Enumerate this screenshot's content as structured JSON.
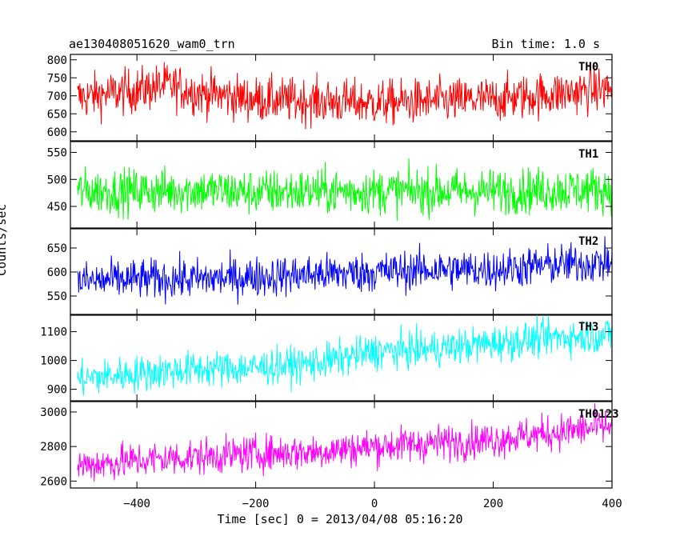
{
  "header": {
    "title_left": "ae130408051620_wam0_trn",
    "title_right": "Bin time: 1.0 s"
  },
  "axes": {
    "ylabel": "Counts/sec",
    "xlabel": "Time [sec] 0 = 2013/04/08 05:16:20"
  },
  "chart_data": [
    {
      "type": "line",
      "label": "TH0",
      "color": "#ff0000",
      "xlim": [
        -512,
        400
      ],
      "ylim": [
        575,
        815
      ],
      "yticks": [
        600,
        650,
        700,
        750,
        800
      ],
      "x": [
        -500,
        -400,
        -350,
        -300,
        -200,
        -100,
        0,
        100,
        200,
        300,
        400
      ],
      "y": [
        695,
        715,
        730,
        710,
        690,
        685,
        680,
        685,
        690,
        705,
        720
      ],
      "scatter": 45
    },
    {
      "type": "line",
      "label": "TH1",
      "color": "#00ff00",
      "xlim": [
        -512,
        400
      ],
      "ylim": [
        410,
        570
      ],
      "yticks": [
        450,
        500,
        550
      ],
      "x": [
        -500,
        -400,
        -300,
        -200,
        -100,
        0,
        100,
        200,
        300,
        400
      ],
      "y": [
        478,
        478,
        480,
        476,
        478,
        478,
        478,
        478,
        480,
        482
      ],
      "scatter": 30
    },
    {
      "type": "line",
      "label": "TH2",
      "color": "#0000ff",
      "xlim": [
        -512,
        400
      ],
      "ylim": [
        510,
        690
      ],
      "yticks": [
        550,
        600,
        650
      ],
      "x": [
        -500,
        -400,
        -300,
        -200,
        -100,
        0,
        100,
        200,
        300,
        400
      ],
      "y": [
        580,
        585,
        585,
        590,
        595,
        600,
        605,
        605,
        615,
        620
      ],
      "scatter": 30
    },
    {
      "type": "line",
      "label": "TH3",
      "color": "#00ffff",
      "xlim": [
        -512,
        400
      ],
      "ylim": [
        860,
        1160
      ],
      "yticks": [
        900,
        1000,
        1100
      ],
      "x": [
        -500,
        -400,
        -300,
        -200,
        -100,
        0,
        100,
        200,
        300,
        400
      ],
      "y": [
        935,
        955,
        970,
        975,
        990,
        1030,
        1040,
        1060,
        1080,
        1090
      ],
      "scatter": 45
    },
    {
      "type": "line",
      "label": "TH0123",
      "color": "#ff00ff",
      "xlim": [
        -512,
        400
      ],
      "ylim": [
        2560,
        3060
      ],
      "yticks": [
        2600,
        2800,
        3000
      ],
      "x": [
        -500,
        -400,
        -300,
        -200,
        -100,
        0,
        100,
        200,
        300,
        400
      ],
      "y": [
        2690,
        2720,
        2740,
        2760,
        2770,
        2800,
        2820,
        2840,
        2880,
        2920
      ],
      "scatter": 75
    }
  ],
  "x_axis": {
    "ticks": [
      -400,
      -200,
      0,
      200,
      400
    ],
    "tick_labels": [
      "−400",
      "−200",
      "0",
      "200",
      "400"
    ]
  }
}
